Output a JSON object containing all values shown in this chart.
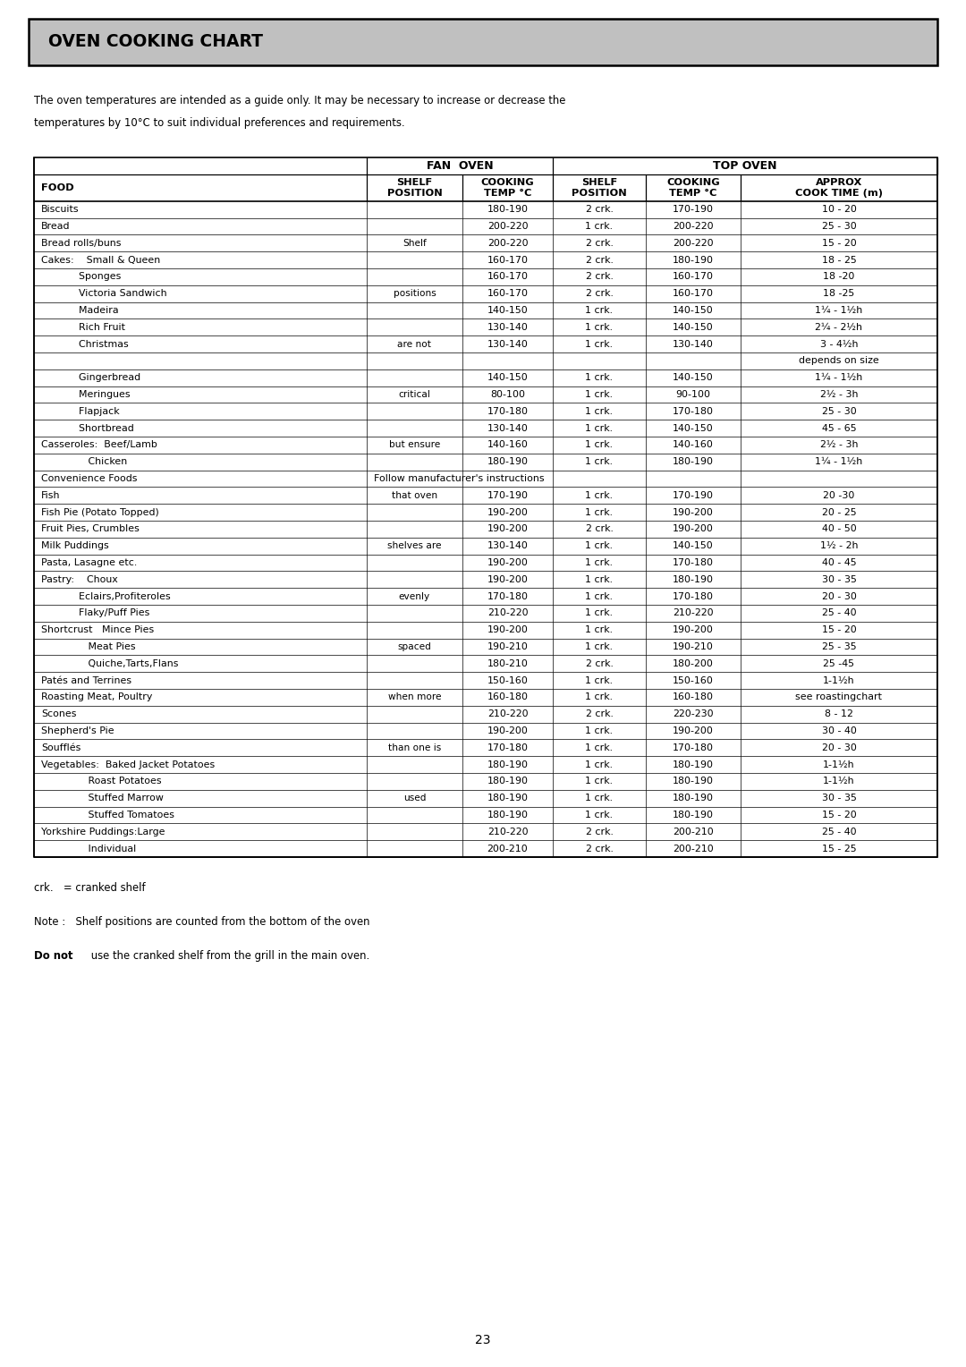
{
  "title": "OVEN COOKING CHART",
  "intro_line1": "The oven temperatures are intended as a guide only. It may be necessary to increase or decrease the",
  "intro_line2": "temperatures by 10°C to suit individual preferences and requirements.",
  "rows": [
    [
      "Biscuits",
      "",
      "180-190",
      "2 crk.",
      "170-190",
      "10 - 20"
    ],
    [
      "Bread",
      "",
      "200-220",
      "1 crk.",
      "200-220",
      "25 - 30"
    ],
    [
      "Bread rolls/buns",
      "Shelf",
      "200-220",
      "2 crk.",
      "200-220",
      "15 - 20"
    ],
    [
      "Cakes:    Small & Queen",
      "",
      "160-170",
      "2 crk.",
      "180-190",
      "18 - 25"
    ],
    [
      "            Sponges",
      "",
      "160-170",
      "2 crk.",
      "160-170",
      "18 -20"
    ],
    [
      "            Victoria Sandwich",
      "positions",
      "160-170",
      "2 crk.",
      "160-170",
      "18 -25"
    ],
    [
      "            Madeira",
      "",
      "140-150",
      "1 crk.",
      "140-150",
      "1¼ - 1½h"
    ],
    [
      "            Rich Fruit",
      "",
      "130-140",
      "1 crk.",
      "140-150",
      "2¼ - 2½h"
    ],
    [
      "            Christmas",
      "are not",
      "130-140",
      "1 crk.",
      "130-140",
      "3 - 4½h"
    ],
    [
      "",
      "",
      "",
      "",
      "",
      "depends on size"
    ],
    [
      "            Gingerbread",
      "",
      "140-150",
      "1 crk.",
      "140-150",
      "1¼ - 1½h"
    ],
    [
      "            Meringues",
      "critical",
      "80-100",
      "1 crk.",
      "90-100",
      "2½ - 3h"
    ],
    [
      "            Flapjack",
      "",
      "170-180",
      "1 crk.",
      "170-180",
      "25 - 30"
    ],
    [
      "            Shortbread",
      "",
      "130-140",
      "1 crk.",
      "140-150",
      "45 - 65"
    ],
    [
      "Casseroles:  Beef/Lamb",
      "but ensure",
      "140-160",
      "1 crk.",
      "140-160",
      "2½ - 3h"
    ],
    [
      "               Chicken",
      "",
      "180-190",
      "1 crk.",
      "180-190",
      "1¼ - 1½h"
    ],
    [
      "Convenience Foods",
      "SPAN:Follow manufacturer's instructions",
      "",
      "",
      "",
      ""
    ],
    [
      "Fish",
      "that oven",
      "170-190",
      "1 crk.",
      "170-190",
      "20 -30"
    ],
    [
      "Fish Pie (Potato Topped)",
      "",
      "190-200",
      "1 crk.",
      "190-200",
      "20 - 25"
    ],
    [
      "Fruit Pies, Crumbles",
      "",
      "190-200",
      "2 crk.",
      "190-200",
      "40 - 50"
    ],
    [
      "Milk Puddings",
      "shelves are",
      "130-140",
      "1 crk.",
      "140-150",
      "1½ - 2h"
    ],
    [
      "Pasta, Lasagne etc.",
      "",
      "190-200",
      "1 crk.",
      "170-180",
      "40 - 45"
    ],
    [
      "Pastry:    Choux",
      "",
      "190-200",
      "1 crk.",
      "180-190",
      "30 - 35"
    ],
    [
      "            Eclairs,Profiteroles",
      "evenly",
      "170-180",
      "1 crk.",
      "170-180",
      "20 - 30"
    ],
    [
      "            Flaky/Puff Pies",
      "",
      "210-220",
      "1 crk.",
      "210-220",
      "25 - 40"
    ],
    [
      "Shortcrust   Mince Pies",
      "",
      "190-200",
      "1 crk.",
      "190-200",
      "15 - 20"
    ],
    [
      "               Meat Pies",
      "spaced",
      "190-210",
      "1 crk.",
      "190-210",
      "25 - 35"
    ],
    [
      "               Quiche,Tarts,Flans",
      "",
      "180-210",
      "2 crk.",
      "180-200",
      "25 -45"
    ],
    [
      "Patés and Terrines",
      "",
      "150-160",
      "1 crk.",
      "150-160",
      "1-1½h"
    ],
    [
      "Roasting Meat, Poultry",
      "when more",
      "160-180",
      "1 crk.",
      "160-180",
      "see roastingchart"
    ],
    [
      "Scones",
      "",
      "210-220",
      "2 crk.",
      "220-230",
      "8 - 12"
    ],
    [
      "Shepherd's Pie",
      "",
      "190-200",
      "1 crk.",
      "190-200",
      "30 - 40"
    ],
    [
      "Soufflés",
      "than one is",
      "170-180",
      "1 crk.",
      "170-180",
      "20 - 30"
    ],
    [
      "Vegetables:  Baked Jacket Potatoes",
      "",
      "180-190",
      "1 crk.",
      "180-190",
      "1-1½h"
    ],
    [
      "               Roast Potatoes",
      "",
      "180-190",
      "1 crk.",
      "180-190",
      "1-1½h"
    ],
    [
      "               Stuffed Marrow",
      "used",
      "180-190",
      "1 crk.",
      "180-190",
      "30 - 35"
    ],
    [
      "               Stuffed Tomatoes",
      "",
      "180-190",
      "1 crk.",
      "180-190",
      "15 - 20"
    ],
    [
      "Yorkshire Puddings:Large",
      "",
      "210-220",
      "2 crk.",
      "200-210",
      "25 - 40"
    ],
    [
      "               Individual",
      "",
      "200-210",
      "2 crk.",
      "200-210",
      "15 - 25"
    ]
  ],
  "footnote1": "crk.   = cranked shelf",
  "footnote2": "Note :   Shelf positions are counted from the bottom of the oven",
  "footnote3_bold": "Do not",
  "footnote3_rest": " use the cranked shelf from the grill in the main oven.",
  "page_number": "23",
  "bg_color": "#ffffff",
  "title_bg_color": "#c0c0c0",
  "text_color": "#000000"
}
